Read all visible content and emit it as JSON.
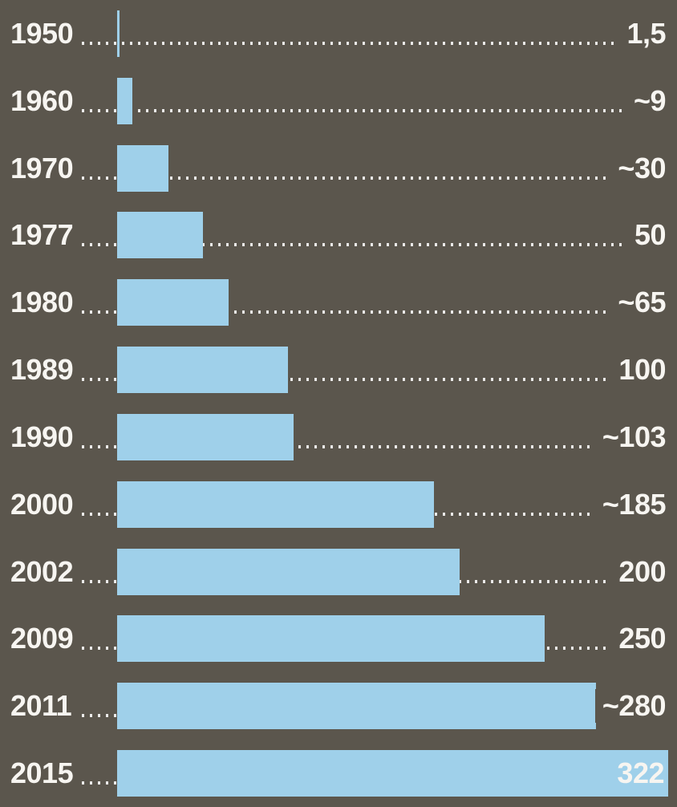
{
  "chart_data": {
    "type": "bar",
    "orientation": "horizontal",
    "title": "",
    "xlabel": "",
    "ylabel": "",
    "categories": [
      "1950",
      "1960",
      "1970",
      "1977",
      "1980",
      "1989",
      "1990",
      "2000",
      "2002",
      "2009",
      "2011",
      "2015"
    ],
    "values": [
      1.5,
      9,
      30,
      50,
      65,
      100,
      103,
      185,
      200,
      250,
      280,
      322
    ],
    "value_labels": [
      "1,5",
      "~9",
      "~30",
      "50",
      "~65",
      "100",
      "~103",
      "~185",
      "200",
      "250",
      "~280",
      "322"
    ],
    "xlim": [
      0,
      322
    ],
    "grid": false,
    "legend": false,
    "leader_style": "dotted",
    "last_label_inside": true,
    "colors": {
      "background": "#5b564d",
      "bar": "#9fd0ea",
      "text": "#f7f5f1",
      "leader_dots": "#ffffff"
    }
  }
}
